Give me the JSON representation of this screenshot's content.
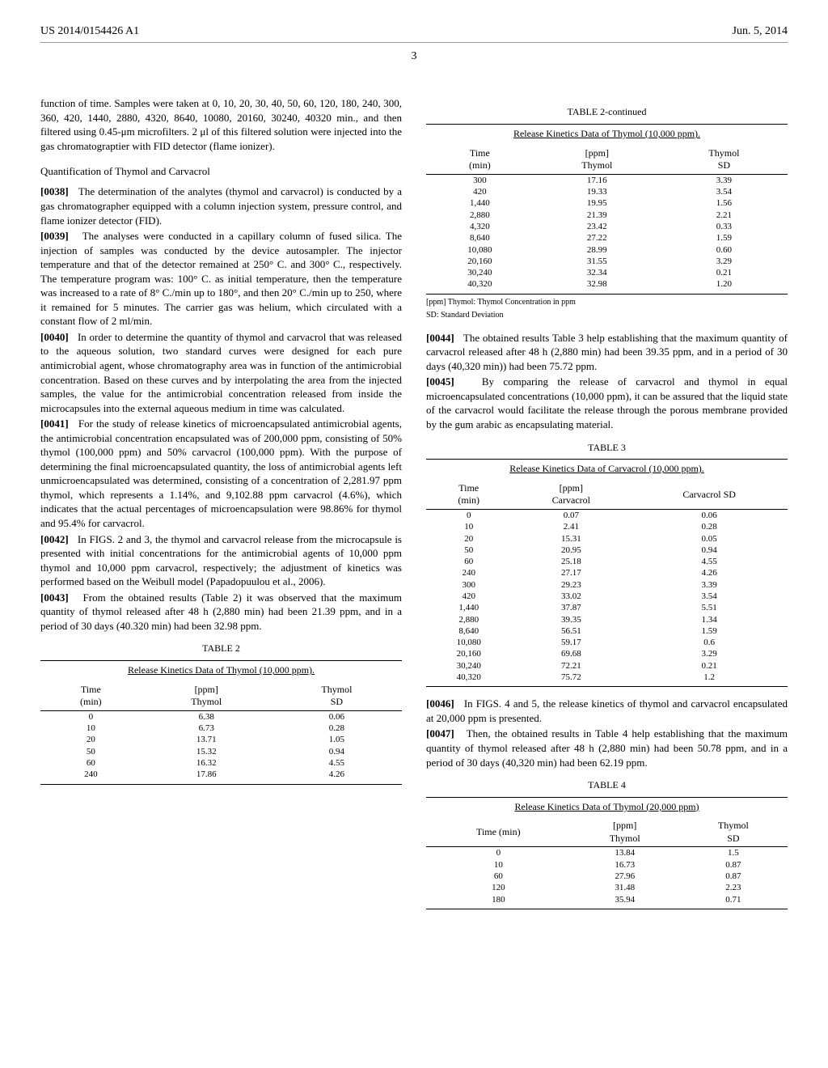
{
  "header": {
    "patent_number": "US 2014/0154426 A1",
    "date": "Jun. 5, 2014",
    "page_number": "3"
  },
  "left_column": {
    "intro_continuation": "function of time. Samples were taken at 0, 10, 20, 30, 40, 50, 60, 120, 180, 240, 300, 360, 420, 1440, 2880, 4320, 8640, 10080, 20160, 30240, 40320 min., and then filtered using 0.45-μm microfilters. 2 μl of this filtered solution were injected into the gas chromatograptier with FID detector (flame ionizer).",
    "section_title": "Quantification of Thymol and Carvacrol",
    "para_0038": "The determination of the analytes (thymol and carvacrol) is conducted by a gas chromatographer equipped with a column injection system, pressure control, and flame ionizer detector (FID).",
    "para_0039": "The analyses were conducted in a capillary column of fused silica. The injection of samples was conducted by the device autosampler. The injector temperature and that of the detector remained at 250° C. and 300° C., respectively. The temperature program was: 100° C. as initial temperature, then the temperature was increased to a rate of 8° C./min up to 180°, and then 20° C./min up to 250, where it remained for 5 minutes. The carrier gas was helium, which circulated with a constant flow of 2 ml/min.",
    "para_0040": "In order to determine the quantity of thymol and carvacrol that was released to the aqueous solution, two standard curves were designed for each pure antimicrobial agent, whose chromatography area was in function of the antimicrobial concentration. Based on these curves and by interpolating the area from the injected samples, the value for the antimicrobial concentration released from inside the microcapsules into the external aqueous medium in time was calculated.",
    "para_0041": "For the study of release kinetics of microencapsulated antimicrobial agents, the antimicrobial concentration encapsulated was of 200,000 ppm, consisting of 50% thymol (100,000 ppm) and 50% carvacrol (100,000 ppm). With the purpose of determining the final microencapsulated quantity, the loss of antimicrobial agents left unmicroencapsulated was determined, consisting of a concentration of 2,281.97 ppm thymol, which represents a 1.14%, and 9,102.88 ppm carvacrol (4.6%), which indicates that the actual percentages of microencapsulation were 98.86% for thymol and 95.4% for carvacrol.",
    "para_0042": "In FIGS. 2 and 3, the thymol and carvacrol release from the microcapsule is presented with initial concentrations for the antimicrobial agents of 10,000 ppm thymol and 10,000 ppm carvacrol, respectively; the adjustment of kinetics was performed based on the Weibull model (Papadopuulou et al., 2006).",
    "para_0043": "From the obtained results (Table 2) it was observed that the maximum quantity of thymol released after 48 h (2,880 min) had been 21.39 ppm, and in a period of 30 days (40.320 min) had been 32.98 ppm.",
    "brackets": {
      "b0038": "[0038]",
      "b0039": "[0039]",
      "b0040": "[0040]",
      "b0041": "[0041]",
      "b0042": "[0042]",
      "b0043": "[0043]"
    }
  },
  "table2": {
    "caption": "TABLE 2",
    "title": "Release Kinetics Data of Thymol (10,000 ppm).",
    "columns": [
      "Time\n(min)",
      "[ppm]\nThymol",
      "Thymol\nSD"
    ],
    "rows": [
      [
        "0",
        "6.38",
        "0.06"
      ],
      [
        "10",
        "6.73",
        "0.28"
      ],
      [
        "20",
        "13.71",
        "1.05"
      ],
      [
        "50",
        "15.32",
        "0.94"
      ],
      [
        "60",
        "16.32",
        "4.55"
      ],
      [
        "240",
        "17.86",
        "4.26"
      ]
    ]
  },
  "table2_cont": {
    "caption": "TABLE 2-continued",
    "title": "Release Kinetics Data of Thymol (10,000 ppm).",
    "columns": [
      "Time\n(min)",
      "[ppm]\nThymol",
      "Thymol\nSD"
    ],
    "rows": [
      [
        "300",
        "17.16",
        "3.39"
      ],
      [
        "420",
        "19.33",
        "3.54"
      ],
      [
        "1,440",
        "19.95",
        "1.56"
      ],
      [
        "2,880",
        "21.39",
        "2.21"
      ],
      [
        "4,320",
        "23.42",
        "0.33"
      ],
      [
        "8,640",
        "27.22",
        "1.59"
      ],
      [
        "10,080",
        "28.99",
        "0.60"
      ],
      [
        "20,160",
        "31.55",
        "3.29"
      ],
      [
        "30,240",
        "32.34",
        "0.21"
      ],
      [
        "40,320",
        "32.98",
        "1.20"
      ]
    ],
    "footnote1": "[ppm] Thymol: Thymol Concentration in ppm",
    "footnote2": "SD: Standard Deviation"
  },
  "right_column": {
    "para_0044": "The obtained results Table 3 help establishing that the maximum quantity of carvacrol released after 48 h (2,880 min) had been 39.35 ppm, and in a period of 30 days (40,320 min)) had been 75.72 ppm.",
    "para_0045": "By comparing the release of carvacrol and thymol in equal microencapsulated concentrations (10,000 ppm), it can be assured that the liquid state of the carvacrol would facilitate the release through the porous membrane provided by the gum arabic as encapsulating material.",
    "para_0046": "In FIGS. 4 and 5, the release kinetics of thymol and carvacrol encapsulated at 20,000 ppm is presented.",
    "para_0047": "Then, the obtained results in Table 4 help establishing that the maximum quantity of thymol released after 48 h (2,880 min) had been 50.78 ppm, and in a period of 30 days (40,320 min) had been 62.19 ppm.",
    "brackets": {
      "b0044": "[0044]",
      "b0045": "[0045]",
      "b0046": "[0046]",
      "b0047": "[0047]"
    }
  },
  "table3": {
    "caption": "TABLE 3",
    "title": "Release Kinetics Data of Carvacrol (10,000 ppm).",
    "columns": [
      "Time\n(min)",
      "[ppm]\nCarvacrol",
      "Carvacrol SD"
    ],
    "rows": [
      [
        "0",
        "0.07",
        "0.06"
      ],
      [
        "10",
        "2.41",
        "0.28"
      ],
      [
        "20",
        "15.31",
        "0.05"
      ],
      [
        "50",
        "20.95",
        "0.94"
      ],
      [
        "60",
        "25.18",
        "4.55"
      ],
      [
        "240",
        "27.17",
        "4.26"
      ],
      [
        "300",
        "29.23",
        "3.39"
      ],
      [
        "420",
        "33.02",
        "3.54"
      ],
      [
        "1,440",
        "37.87",
        "5.51"
      ],
      [
        "2,880",
        "39.35",
        "1.34"
      ],
      [
        "8,640",
        "56.51",
        "1.59"
      ],
      [
        "10,080",
        "59.17",
        "0.6"
      ],
      [
        "20,160",
        "69.68",
        "3.29"
      ],
      [
        "30,240",
        "72.21",
        "0.21"
      ],
      [
        "40,320",
        "75.72",
        "1.2"
      ]
    ]
  },
  "table4": {
    "caption": "TABLE 4",
    "title": "Release Kinetics Data of Thymol (20,000 ppm)",
    "columns": [
      "Time (min)",
      "[ppm]\nThymol",
      "Thymol\nSD"
    ],
    "rows": [
      [
        "0",
        "13.84",
        "1.5"
      ],
      [
        "10",
        "16.73",
        "0.87"
      ],
      [
        "60",
        "27.96",
        "0.87"
      ],
      [
        "120",
        "31.48",
        "2.23"
      ],
      [
        "180",
        "35.94",
        "0.71"
      ]
    ]
  }
}
